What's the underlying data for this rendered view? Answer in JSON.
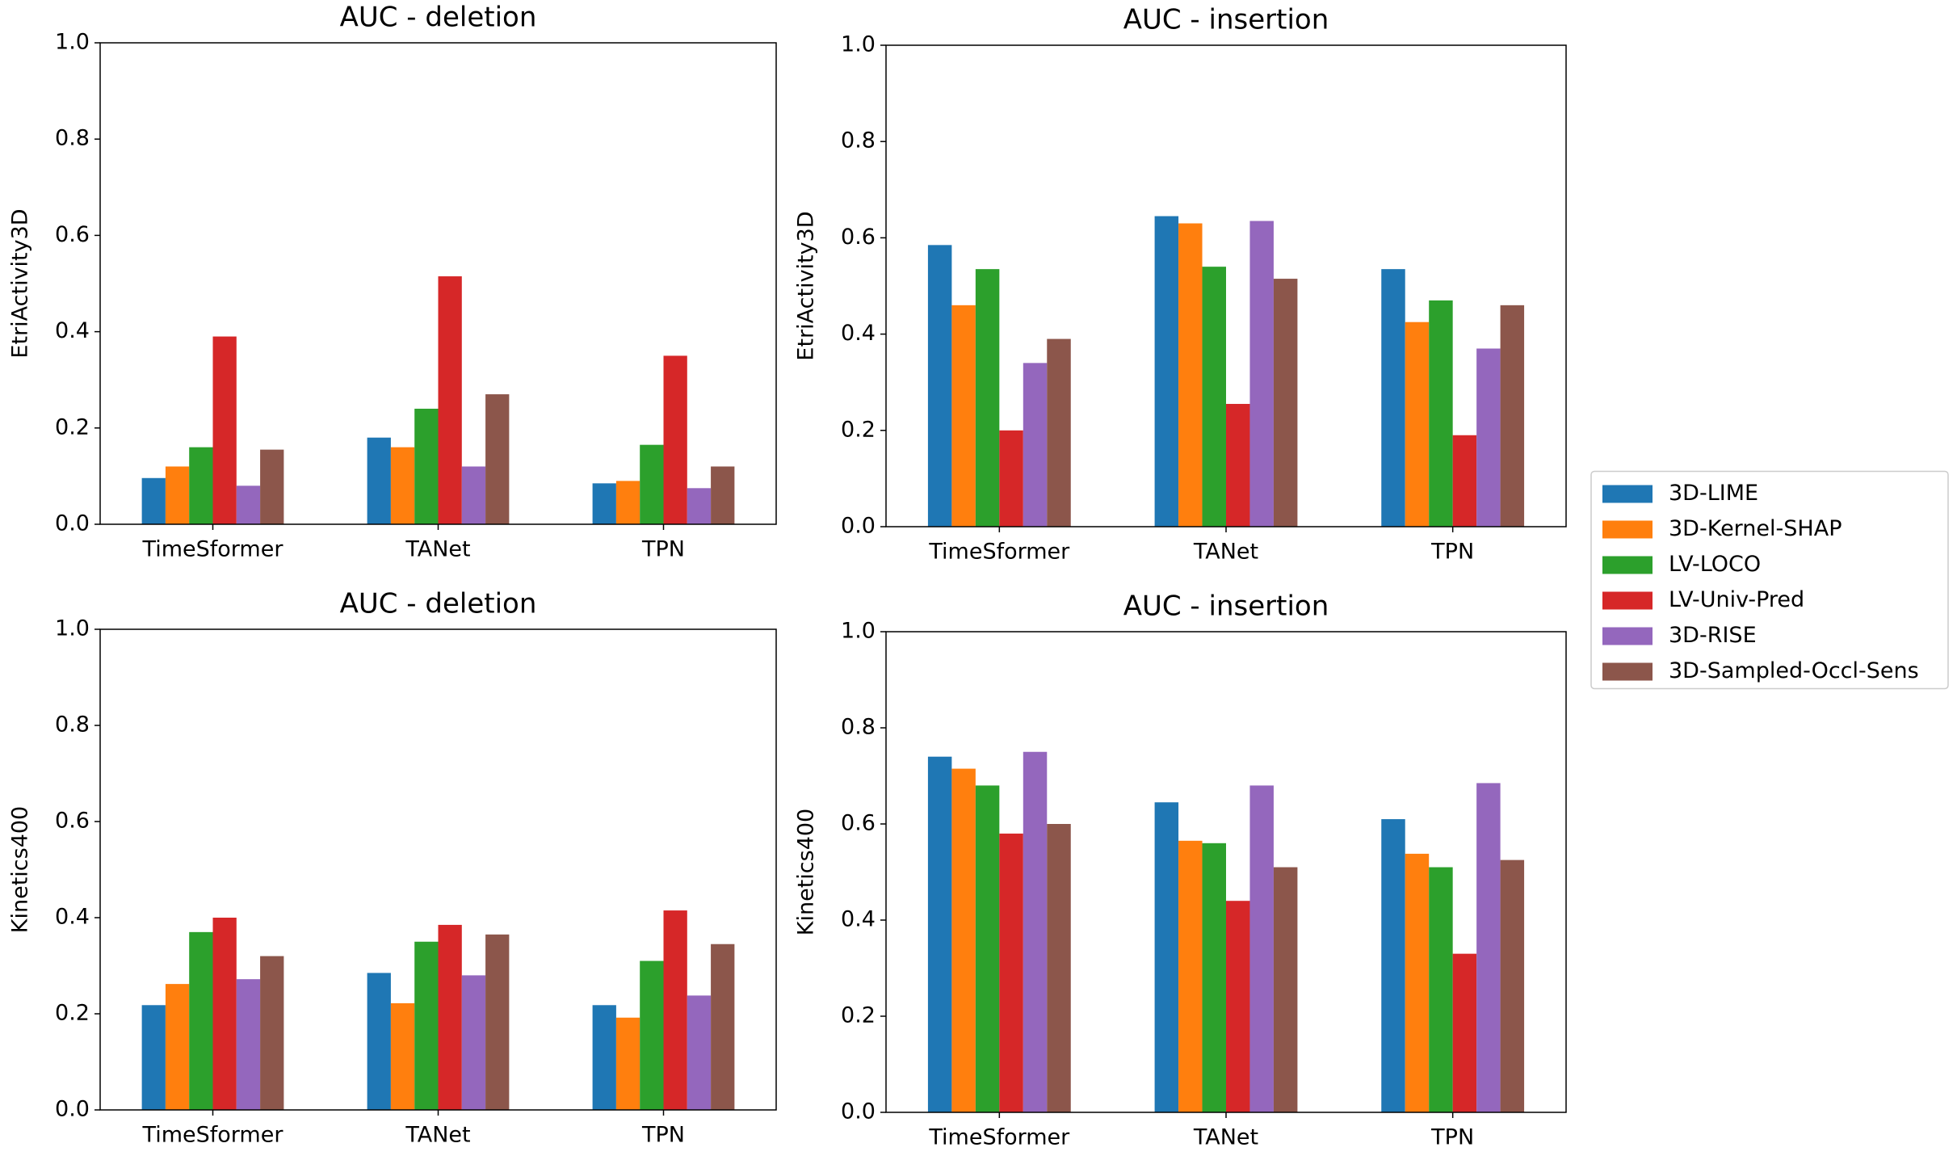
{
  "chart_data": [
    {
      "type": "bar",
      "title": "AUC - deletion",
      "ylabel": "EtriActivity3D",
      "categories": [
        "TimeSformer",
        "TANet",
        "TPN"
      ],
      "series": [
        {
          "values": [
            0.096,
            0.18,
            0.085
          ]
        },
        {
          "values": [
            0.12,
            0.16,
            0.09
          ]
        },
        {
          "values": [
            0.16,
            0.24,
            0.165
          ]
        },
        {
          "values": [
            0.39,
            0.515,
            0.35
          ]
        },
        {
          "values": [
            0.08,
            0.12,
            0.075
          ]
        },
        {
          "values": [
            0.155,
            0.27,
            0.12
          ]
        }
      ],
      "ylim": [
        0,
        1
      ],
      "yticks": [
        {
          "value": 0,
          "label": "0.0"
        },
        {
          "value": 0.2,
          "label": "0.2"
        },
        {
          "value": 0.4,
          "label": "0.4"
        },
        {
          "value": 0.6,
          "label": "0.6"
        },
        {
          "value": 0.8,
          "label": "0.8"
        },
        {
          "value": 1,
          "label": "1.0"
        }
      ]
    },
    {
      "type": "bar",
      "title": "AUC - insertion",
      "ylabel": "EtriActivity3D",
      "categories": [
        "TimeSformer",
        "TANet",
        "TPN"
      ],
      "series": [
        {
          "values": [
            0.585,
            0.645,
            0.535
          ]
        },
        {
          "values": [
            0.46,
            0.63,
            0.425
          ]
        },
        {
          "values": [
            0.535,
            0.54,
            0.47
          ]
        },
        {
          "values": [
            0.2,
            0.255,
            0.19
          ]
        },
        {
          "values": [
            0.34,
            0.635,
            0.37
          ]
        },
        {
          "values": [
            0.39,
            0.515,
            0.46
          ]
        }
      ],
      "ylim": [
        0,
        1
      ],
      "yticks": [
        {
          "value": 0,
          "label": "0.0"
        },
        {
          "value": 0.2,
          "label": "0.2"
        },
        {
          "value": 0.4,
          "label": "0.4"
        },
        {
          "value": 0.6,
          "label": "0.6"
        },
        {
          "value": 0.8,
          "label": "0.8"
        },
        {
          "value": 1,
          "label": "1.0"
        }
      ]
    },
    {
      "type": "bar",
      "title": "AUC - deletion",
      "ylabel": "Kinetics400",
      "categories": [
        "TimeSformer",
        "TANet",
        "TPN"
      ],
      "series": [
        {
          "values": [
            0.218,
            0.285,
            0.218
          ]
        },
        {
          "values": [
            0.262,
            0.222,
            0.192
          ]
        },
        {
          "values": [
            0.37,
            0.35,
            0.31
          ]
        },
        {
          "values": [
            0.4,
            0.385,
            0.415
          ]
        },
        {
          "values": [
            0.272,
            0.28,
            0.238
          ]
        },
        {
          "values": [
            0.32,
            0.365,
            0.345
          ]
        }
      ],
      "ylim": [
        0,
        1
      ],
      "yticks": [
        {
          "value": 0,
          "label": "0.0"
        },
        {
          "value": 0.2,
          "label": "0.2"
        },
        {
          "value": 0.4,
          "label": "0.4"
        },
        {
          "value": 0.6,
          "label": "0.6"
        },
        {
          "value": 0.8,
          "label": "0.8"
        },
        {
          "value": 1,
          "label": "1.0"
        }
      ]
    },
    {
      "type": "bar",
      "title": "AUC - insertion",
      "ylabel": "Kinetics400",
      "categories": [
        "TimeSformer",
        "TANet",
        "TPN"
      ],
      "series": [
        {
          "values": [
            0.74,
            0.645,
            0.61
          ]
        },
        {
          "values": [
            0.715,
            0.565,
            0.538
          ]
        },
        {
          "values": [
            0.68,
            0.56,
            0.51
          ]
        },
        {
          "values": [
            0.58,
            0.44,
            0.33
          ]
        },
        {
          "values": [
            0.75,
            0.68,
            0.685
          ]
        },
        {
          "values": [
            0.6,
            0.51,
            0.525
          ]
        }
      ],
      "ylim": [
        0,
        1
      ],
      "yticks": [
        {
          "value": 0,
          "label": "0.0"
        },
        {
          "value": 0.2,
          "label": "0.2"
        },
        {
          "value": 0.4,
          "label": "0.4"
        },
        {
          "value": 0.6,
          "label": "0.6"
        },
        {
          "value": 0.8,
          "label": "0.8"
        },
        {
          "value": 1,
          "label": "1.0"
        }
      ]
    }
  ],
  "legend": {
    "location": "center right",
    "series": [
      {
        "name": "3D-LIME",
        "color": "#1f77b4"
      },
      {
        "name": "3D-Kernel-SHAP",
        "color": "#ff7f0e"
      },
      {
        "name": "LV-LOCO",
        "color": "#2ca02c"
      },
      {
        "name": "LV-Univ-Pred",
        "color": "#d62728"
      },
      {
        "name": "3D-RISE",
        "color": "#9467bd"
      },
      {
        "name": "3D-Sampled-Occl-Sens",
        "color": "#8c564b"
      }
    ]
  }
}
